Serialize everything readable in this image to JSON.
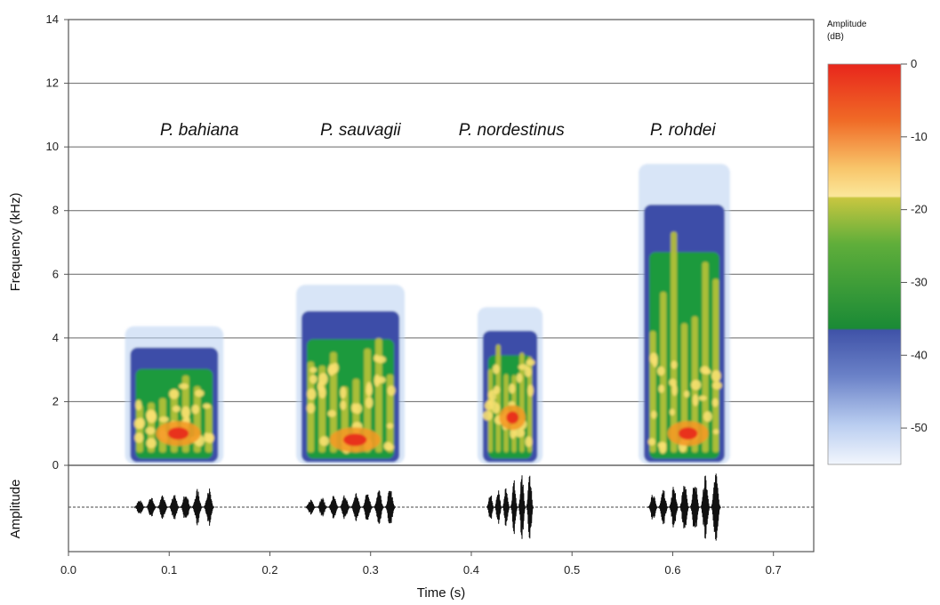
{
  "chart_data": {
    "type": "heatmap",
    "title": "",
    "xlabel": "Time (s)",
    "ylabel": "Frequency (kHz)",
    "lower_panel_ylabel": "Amplitude",
    "xlim": [
      0.0,
      0.74
    ],
    "ylim": [
      0,
      14
    ],
    "x_ticks": [
      "0.0",
      "0.1",
      "0.2",
      "0.3",
      "0.4",
      "0.5",
      "0.6",
      "0.7"
    ],
    "y_ticks": [
      "0",
      "2",
      "4",
      "6",
      "8",
      "10",
      "12",
      "14"
    ],
    "grid": "horizontal",
    "colorbar": {
      "title_line1": "Amplitude",
      "title_line2": "(dB)",
      "ticks": [
        "0",
        "-10",
        "-20",
        "-30",
        "-40",
        "-50"
      ],
      "range": [
        -55,
        0
      ]
    },
    "species": [
      {
        "label": "P. bahiana",
        "label_x": 0.13,
        "t_start": 0.065,
        "t_end": 0.145,
        "f_max": 4.2,
        "peak_freq": 1.0,
        "pulses": 7
      },
      {
        "label": "P. sauvagii",
        "label_x": 0.29,
        "t_start": 0.235,
        "t_end": 0.325,
        "f_max": 5.5,
        "peak_freq": 0.8,
        "pulses": 8
      },
      {
        "label": "P. nordestinus",
        "label_x": 0.44,
        "t_start": 0.415,
        "t_end": 0.462,
        "f_max": 4.8,
        "peak_freq": 1.5,
        "pulses": 6
      },
      {
        "label": "P. rohdei",
        "label_x": 0.61,
        "t_start": 0.575,
        "t_end": 0.648,
        "f_max": 9.3,
        "peak_freq": 1.0,
        "pulses": 7
      }
    ],
    "colors": {
      "red": "#e8261c",
      "orange": "#f39a26",
      "yellow": "#f8e070",
      "olive": "#b9c236",
      "green": "#1f9a3c",
      "blue": "#3e4ea8",
      "light_blue": "#b8cff0"
    }
  }
}
